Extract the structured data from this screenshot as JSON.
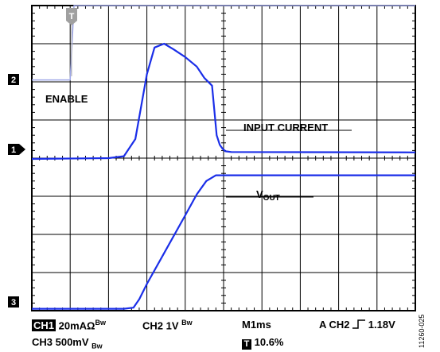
{
  "chart_data": {
    "type": "line",
    "title": "",
    "grid": true,
    "markers": {
      "ch2": "2",
      "ch1": "1",
      "ch3": "3",
      "trigger": "T"
    },
    "annotations": {
      "enable": "ENABLE",
      "input_current": "INPUT CURRENT",
      "vout_main": "V",
      "vout_sub": "OUT"
    },
    "x_unit": "div",
    "xlim": [
      0,
      10
    ],
    "ylim": [
      -4,
      4
    ],
    "series": [
      {
        "name": "ENABLE",
        "x": [
          0,
          1.0,
          1.1,
          10
        ],
        "y": [
          2.05,
          2.05,
          4.2,
          4.2
        ]
      },
      {
        "name": "INPUT CURRENT",
        "x": [
          0,
          2.0,
          2.4,
          2.7,
          3.0,
          3.2,
          3.45,
          3.7,
          4.0,
          4.3,
          4.5,
          4.7,
          4.82,
          4.9,
          4.97,
          5.05,
          5.2,
          10
        ],
        "y": [
          -0.02,
          0.0,
          0.05,
          0.5,
          2.2,
          2.9,
          3.0,
          2.85,
          2.65,
          2.4,
          2.1,
          1.9,
          0.6,
          0.35,
          0.25,
          0.18,
          0.16,
          0.15
        ]
      },
      {
        "name": "VOUT",
        "x": [
          0,
          2.4,
          2.65,
          2.8,
          3.0,
          3.5,
          4.0,
          4.3,
          4.55,
          4.8,
          10
        ],
        "y": [
          -3.95,
          -3.95,
          -3.92,
          -3.7,
          -3.3,
          -2.4,
          -1.5,
          -0.95,
          -0.6,
          -0.45,
          -0.45
        ]
      }
    ],
    "colors": {
      "trace": "#1a2ee8",
      "marker_ch1": "#000000",
      "enable_trace": "#9fa8e8"
    }
  },
  "status": {
    "ch1_badge": "CH1",
    "ch1_scale": "20mAΩ",
    "ch1_bw": "Bw",
    "ch2_scale": "CH2 1V",
    "ch2_bw": "Bw",
    "timebase": "M1ms",
    "trigger_prefix": "A  CH2",
    "trigger_level": "1.18V",
    "ch3_scale": "CH3  500mV",
    "ch3_bw": "Bw",
    "trigger_icon": "T",
    "trigger_position": "10.6%"
  },
  "figure_id": "11260-025"
}
